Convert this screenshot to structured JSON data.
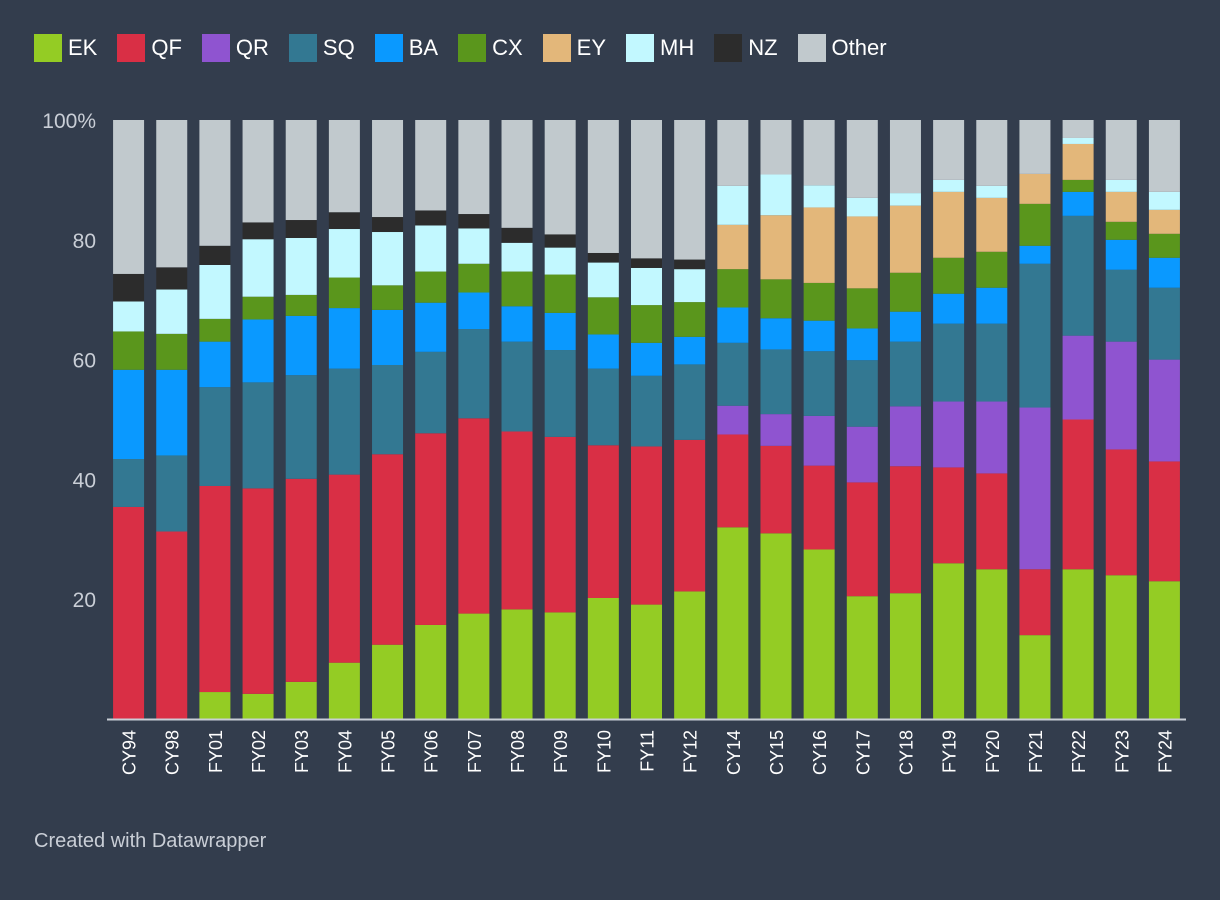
{
  "chart_data": {
    "type": "bar",
    "stacked": true,
    "percent": true,
    "categories": [
      "CY94",
      "CY98",
      "FY01",
      "FY02",
      "FY03",
      "FY04",
      "FY05",
      "FY06",
      "FY07",
      "FY08",
      "FY09",
      "FY10",
      "FY11",
      "FY12",
      "CY14",
      "CY15",
      "CY16",
      "CY17",
      "CY18",
      "FY19",
      "FY20",
      "FY21",
      "FY22",
      "FY23",
      "FY24"
    ],
    "series": [
      {
        "name": "EK",
        "color": "#94cc24",
        "values": [
          0,
          0,
          4.5,
          4.2,
          6.2,
          9.4,
          12.4,
          15.7,
          17.6,
          18.3,
          17.8,
          20.2,
          19.1,
          21.3,
          32,
          31,
          28.3,
          20.5,
          21,
          26,
          25,
          14,
          25,
          24,
          23
        ]
      },
      {
        "name": "QF",
        "color": "#d92f45",
        "values": [
          35.4,
          31.3,
          34.4,
          34.3,
          33.9,
          31.4,
          31.8,
          32,
          32.6,
          29.7,
          29.3,
          25.5,
          26.4,
          25.3,
          15.5,
          14.6,
          14,
          19,
          21.2,
          16,
          16,
          11,
          25,
          21,
          20
        ]
      },
      {
        "name": "QR",
        "color": "#8f54d0",
        "values": [
          0,
          0,
          0,
          0,
          0,
          0,
          0,
          0,
          0,
          0,
          0,
          0,
          0,
          0,
          4.8,
          5.3,
          8.3,
          9.3,
          10,
          11,
          12,
          27,
          14,
          18,
          17
        ]
      },
      {
        "name": "SQ",
        "color": "#337892",
        "values": [
          8,
          12.7,
          16.5,
          17.7,
          17.3,
          17.7,
          14.9,
          13.6,
          14.9,
          15,
          14.5,
          12.8,
          11.8,
          12.6,
          10.5,
          10.8,
          10.8,
          11.1,
          10.8,
          13,
          13,
          24,
          20,
          12,
          12
        ]
      },
      {
        "name": "BA",
        "color": "#0a99ff",
        "values": [
          14.9,
          14.3,
          7.6,
          10.5,
          9.9,
          10.1,
          9.2,
          8.2,
          6.1,
          5.9,
          6.2,
          5.7,
          5.5,
          4.6,
          5.9,
          5.2,
          5.1,
          5.3,
          5,
          5,
          6,
          3,
          4,
          5,
          5
        ]
      },
      {
        "name": "CX",
        "color": "#5a961c",
        "values": [
          6.4,
          6,
          3.8,
          3.8,
          3.5,
          5.1,
          4.1,
          5.2,
          4.8,
          5.8,
          6.4,
          6.2,
          6.3,
          5.8,
          6.4,
          6.5,
          6.3,
          6.7,
          6.5,
          6,
          6,
          7,
          2,
          3,
          4
        ]
      },
      {
        "name": "EY",
        "color": "#e3b77a",
        "values": [
          0,
          0,
          0,
          0,
          0,
          0,
          0,
          0,
          0,
          0,
          0,
          0,
          0,
          0,
          7.4,
          10.7,
          12.6,
          12,
          11.2,
          11,
          9,
          5,
          6,
          5,
          4
        ]
      },
      {
        "name": "MH",
        "color": "#c2f8ff",
        "values": [
          5,
          7.4,
          9,
          9.6,
          9.5,
          8.1,
          8.9,
          7.7,
          5.9,
          4.8,
          4.5,
          5.8,
          6.2,
          5.5,
          6.5,
          6.8,
          3.7,
          3.1,
          2.1,
          2,
          2,
          0,
          1,
          2,
          3
        ]
      },
      {
        "name": "NZ",
        "color": "#2c2c2c",
        "values": [
          4.6,
          3.7,
          3.2,
          2.8,
          3,
          2.8,
          2.5,
          2.5,
          2.4,
          2.5,
          2.2,
          1.6,
          1.6,
          1.6,
          0,
          0,
          0,
          0,
          0,
          0,
          0,
          0,
          0,
          0,
          0
        ]
      },
      {
        "name": "Other",
        "color": "#c1c9cd",
        "values": [
          25.7,
          24.6,
          21,
          17.1,
          16.7,
          15.4,
          16.2,
          15.1,
          15.7,
          18,
          19.1,
          22.2,
          23.1,
          23.3,
          11,
          9.1,
          10.9,
          13,
          12.2,
          10,
          11,
          9,
          3,
          10,
          12
        ]
      }
    ],
    "ylim": [
      0,
      100
    ],
    "yticks": [
      20,
      40,
      60,
      80,
      100
    ],
    "ytick_labels": [
      "20",
      "40",
      "60",
      "80",
      "100%"
    ],
    "grid": false,
    "title": "",
    "xlabel": "",
    "ylabel": "",
    "legend_position": "top-left"
  },
  "footer": {
    "credit": "Created with Datawrapper"
  }
}
